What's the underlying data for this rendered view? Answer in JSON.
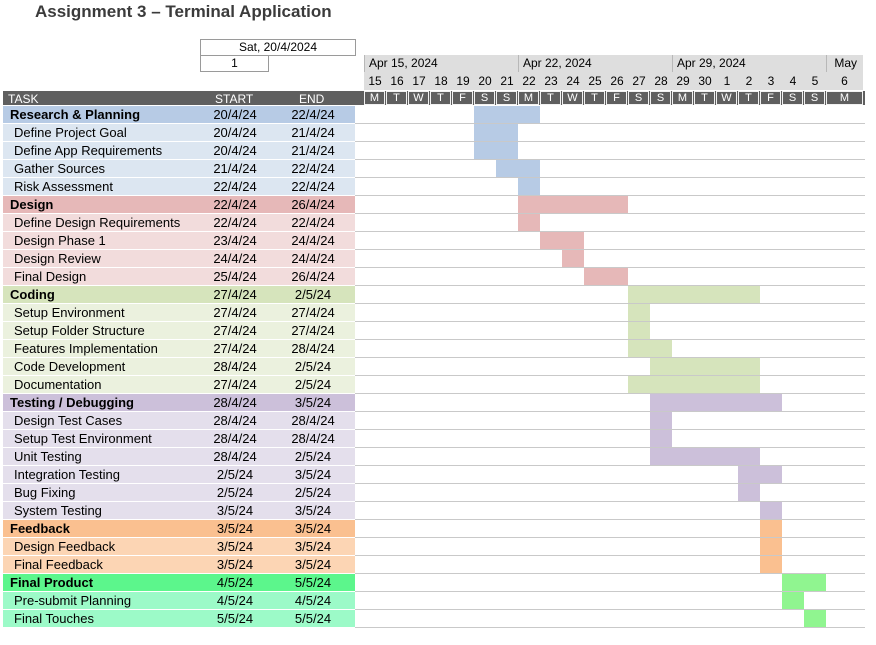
{
  "title": "Assignment 3 – Terminal Application",
  "project_start_display": "Sat, 20/4/2024",
  "display_week": "1",
  "timeline": {
    "months": [
      "Apr 15, 2024",
      "Apr 22, 2024",
      "Apr 29, 2024",
      "May"
    ],
    "day_numbers": [
      "15",
      "16",
      "17",
      "18",
      "19",
      "20",
      "21",
      "22",
      "23",
      "24",
      "25",
      "26",
      "27",
      "28",
      "29",
      "30",
      "1",
      "2",
      "3",
      "4",
      "5",
      "6"
    ],
    "weekdays": [
      "M",
      "T",
      "W",
      "T",
      "F",
      "S",
      "S",
      "M",
      "T",
      "W",
      "T",
      "F",
      "S",
      "S",
      "M",
      "T",
      "W",
      "T",
      "F",
      "S",
      "S",
      "M"
    ]
  },
  "columns": {
    "task": "TASK",
    "start": "START",
    "end": "END"
  },
  "colors": {
    "research": "#b7cbe5",
    "research_light": "#dce6f1",
    "design": "#e6b8b8",
    "design_light": "#f2dcdc",
    "coding": "#d6e4bc",
    "coding_light": "#ebf1de",
    "testing": "#ccc0da",
    "testing_light": "#e4dfec",
    "feedback": "#fac090",
    "feedback_light": "#fcd5b4",
    "final": "#5cf68c",
    "final_light": "#9cfac8",
    "final_bar": "#90f590"
  },
  "tasks": [
    {
      "name": "Research & Planning",
      "start": "20/4/24",
      "end": "22/4/24",
      "phase": true,
      "group": "research",
      "bar_start": "2024-04-20",
      "bar_end": "2024-04-22"
    },
    {
      "name": "Define Project Goal",
      "start": "20/4/24",
      "end": "21/4/24",
      "phase": false,
      "group": "research",
      "bar_start": "2024-04-20",
      "bar_end": "2024-04-21"
    },
    {
      "name": "Define App Requirements",
      "start": "20/4/24",
      "end": "21/4/24",
      "phase": false,
      "group": "research",
      "bar_start": "2024-04-20",
      "bar_end": "2024-04-21"
    },
    {
      "name": "Gather Sources",
      "start": "21/4/24",
      "end": "22/4/24",
      "phase": false,
      "group": "research",
      "bar_start": "2024-04-21",
      "bar_end": "2024-04-22"
    },
    {
      "name": "Risk Assessment",
      "start": "22/4/24",
      "end": "22/4/24",
      "phase": false,
      "group": "research",
      "bar_start": "2024-04-22",
      "bar_end": "2024-04-22"
    },
    {
      "name": "Design",
      "start": "22/4/24",
      "end": "26/4/24",
      "phase": true,
      "group": "design",
      "bar_start": "2024-04-22",
      "bar_end": "2024-04-26"
    },
    {
      "name": "Define Design Requirements",
      "start": "22/4/24",
      "end": "22/4/24",
      "phase": false,
      "group": "design",
      "bar_start": "2024-04-22",
      "bar_end": "2024-04-22"
    },
    {
      "name": "Design Phase 1",
      "start": "23/4/24",
      "end": "24/4/24",
      "phase": false,
      "group": "design",
      "bar_start": "2024-04-23",
      "bar_end": "2024-04-24"
    },
    {
      "name": "Design Review",
      "start": "24/4/24",
      "end": "24/4/24",
      "phase": false,
      "group": "design",
      "bar_start": "2024-04-24",
      "bar_end": "2024-04-24"
    },
    {
      "name": "Final Design",
      "start": "25/4/24",
      "end": "26/4/24",
      "phase": false,
      "group": "design",
      "bar_start": "2024-04-25",
      "bar_end": "2024-04-26"
    },
    {
      "name": "Coding",
      "start": "27/4/24",
      "end": "2/5/24",
      "phase": true,
      "group": "coding",
      "bar_start": "2024-04-27",
      "bar_end": "2024-05-02"
    },
    {
      "name": "Setup Environment",
      "start": "27/4/24",
      "end": "27/4/24",
      "phase": false,
      "group": "coding",
      "bar_start": "2024-04-27",
      "bar_end": "2024-04-27"
    },
    {
      "name": "Setup Folder Structure",
      "start": "27/4/24",
      "end": "27/4/24",
      "phase": false,
      "group": "coding",
      "bar_start": "2024-04-27",
      "bar_end": "2024-04-27"
    },
    {
      "name": "Features Implementation",
      "start": "27/4/24",
      "end": "28/4/24",
      "phase": false,
      "group": "coding",
      "bar_start": "2024-04-27",
      "bar_end": "2024-04-28"
    },
    {
      "name": "Code Development",
      "start": "28/4/24",
      "end": "2/5/24",
      "phase": false,
      "group": "coding",
      "bar_start": "2024-04-28",
      "bar_end": "2024-05-02"
    },
    {
      "name": "Documentation",
      "start": "27/4/24",
      "end": "2/5/24",
      "phase": false,
      "group": "coding",
      "bar_start": "2024-04-27",
      "bar_end": "2024-05-02"
    },
    {
      "name": "Testing / Debugging",
      "start": "28/4/24",
      "end": "3/5/24",
      "phase": true,
      "group": "testing",
      "bar_start": "2024-04-28",
      "bar_end": "2024-05-03"
    },
    {
      "name": "Design Test Cases",
      "start": "28/4/24",
      "end": "28/4/24",
      "phase": false,
      "group": "testing",
      "bar_start": "2024-04-28",
      "bar_end": "2024-04-28"
    },
    {
      "name": "Setup Test Environment",
      "start": "28/4/24",
      "end": "28/4/24",
      "phase": false,
      "group": "testing",
      "bar_start": "2024-04-28",
      "bar_end": "2024-04-28"
    },
    {
      "name": "Unit Testing",
      "start": "28/4/24",
      "end": "2/5/24",
      "phase": false,
      "group": "testing",
      "bar_start": "2024-04-28",
      "bar_end": "2024-05-02"
    },
    {
      "name": "Integration Testing",
      "start": "2/5/24",
      "end": "3/5/24",
      "phase": false,
      "group": "testing",
      "bar_start": "2024-05-02",
      "bar_end": "2024-05-03"
    },
    {
      "name": "Bug Fixing",
      "start": "2/5/24",
      "end": "2/5/24",
      "phase": false,
      "group": "testing",
      "bar_start": "2024-05-02",
      "bar_end": "2024-05-02"
    },
    {
      "name": "System Testing",
      "start": "3/5/24",
      "end": "3/5/24",
      "phase": false,
      "group": "testing",
      "bar_start": "2024-05-03",
      "bar_end": "2024-05-03"
    },
    {
      "name": "Feedback",
      "start": "3/5/24",
      "end": "3/5/24",
      "phase": true,
      "group": "feedback",
      "bar_start": "2024-05-03",
      "bar_end": "2024-05-03"
    },
    {
      "name": "Design Feedback",
      "start": "3/5/24",
      "end": "3/5/24",
      "phase": false,
      "group": "feedback",
      "bar_start": "2024-05-03",
      "bar_end": "2024-05-03"
    },
    {
      "name": "Final Feedback",
      "start": "3/5/24",
      "end": "3/5/24",
      "phase": false,
      "group": "feedback",
      "bar_start": "2024-05-03",
      "bar_end": "2024-05-03"
    },
    {
      "name": "Final Product",
      "start": "4/5/24",
      "end": "5/5/24",
      "phase": true,
      "group": "final",
      "bar_start": "2024-05-04",
      "bar_end": "2024-05-05"
    },
    {
      "name": "Pre-submit Planning",
      "start": "4/5/24",
      "end": "4/5/24",
      "phase": false,
      "group": "final",
      "bar_start": "2024-05-04",
      "bar_end": "2024-05-04"
    },
    {
      "name": "Final Touches",
      "start": "5/5/24",
      "end": "5/5/24",
      "phase": false,
      "group": "final",
      "bar_start": "2024-05-05",
      "bar_end": "2024-05-05"
    }
  ]
}
